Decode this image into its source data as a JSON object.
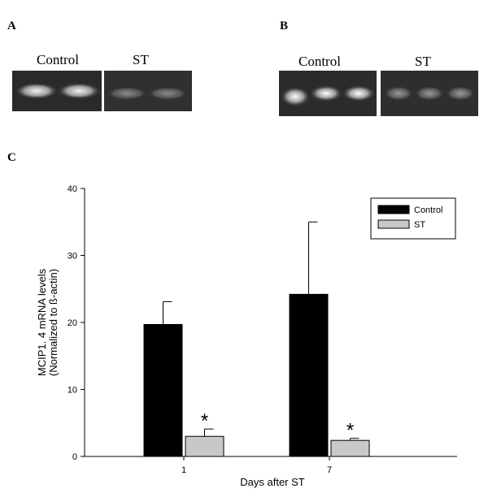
{
  "figure": {
    "panel_a": {
      "letter": "A",
      "lane_labels": [
        "Control",
        "ST"
      ]
    },
    "panel_b": {
      "letter": "B",
      "lane_labels": [
        "Control",
        "ST"
      ]
    },
    "panel_c": {
      "letter": "C"
    }
  },
  "chart_data": {
    "type": "bar",
    "categories": [
      "1",
      "7"
    ],
    "series": [
      {
        "name": "Control",
        "color": "#000000",
        "values": [
          19.7,
          24.2
        ],
        "errors": [
          3.4,
          10.8
        ]
      },
      {
        "name": "ST",
        "color": "#c8c8c8",
        "values": [
          3.0,
          2.4
        ],
        "errors": [
          1.1,
          0.3
        ]
      }
    ],
    "significance_marks": [
      "*",
      "*"
    ],
    "xlabel": "Days after ST",
    "ylabel_lines": [
      "MCIP1. 4 mRNA levels",
      "(Normalized to ß-actin)"
    ],
    "ylim": [
      0,
      40
    ],
    "yticks": [
      0,
      10,
      20,
      30,
      40
    ],
    "grid": false,
    "legend_position": "top-right"
  }
}
